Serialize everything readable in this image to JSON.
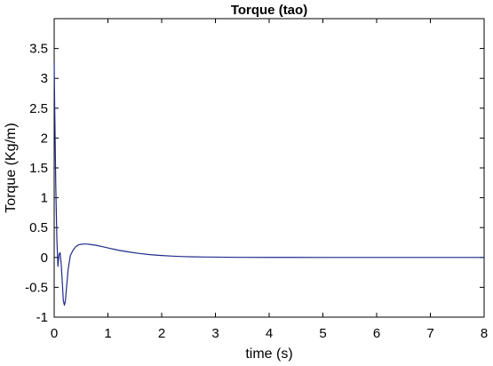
{
  "chart_data": {
    "type": "line",
    "title": "Torque (tao)",
    "xlabel": "time (s)",
    "ylabel": "Torque (Kg/m)",
    "xlim": [
      0,
      8
    ],
    "ylim": [
      -1,
      4
    ],
    "xticks": [
      "0",
      "1",
      "2",
      "3",
      "4",
      "5",
      "6",
      "7",
      "8"
    ],
    "yticks": [
      "-1",
      "-0.5",
      "0",
      "0.5",
      "1",
      "1.5",
      "2",
      "2.5",
      "3",
      "3.5"
    ],
    "grid": false,
    "series": [
      {
        "color": "#1f2a8c",
        "x": [
          0,
          0.01,
          0.03,
          0.05,
          0.07,
          0.09,
          0.11,
          0.13,
          0.15,
          0.17,
          0.19,
          0.21,
          0.23,
          0.26,
          0.3,
          0.35,
          0.4,
          0.45,
          0.5,
          0.55,
          0.6,
          0.65,
          0.7,
          0.8,
          0.9,
          1.0,
          1.2,
          1.4,
          1.6,
          1.8,
          2.0,
          2.2,
          2.4,
          2.6,
          2.8,
          3.0,
          3.5,
          4.0,
          4.5,
          5.0,
          6.0,
          7.0,
          8.0
        ],
        "y": [
          3.25,
          2.5,
          1.2,
          0.3,
          -0.15,
          0.05,
          0.08,
          -0.1,
          -0.4,
          -0.72,
          -0.8,
          -0.72,
          -0.5,
          -0.2,
          0.03,
          0.12,
          0.18,
          0.21,
          0.22,
          0.225,
          0.225,
          0.22,
          0.215,
          0.2,
          0.18,
          0.16,
          0.12,
          0.09,
          0.065,
          0.045,
          0.032,
          0.022,
          0.015,
          0.01,
          0.007,
          0.005,
          0.002,
          0.001,
          0.0005,
          0,
          0,
          0,
          0
        ]
      }
    ]
  }
}
